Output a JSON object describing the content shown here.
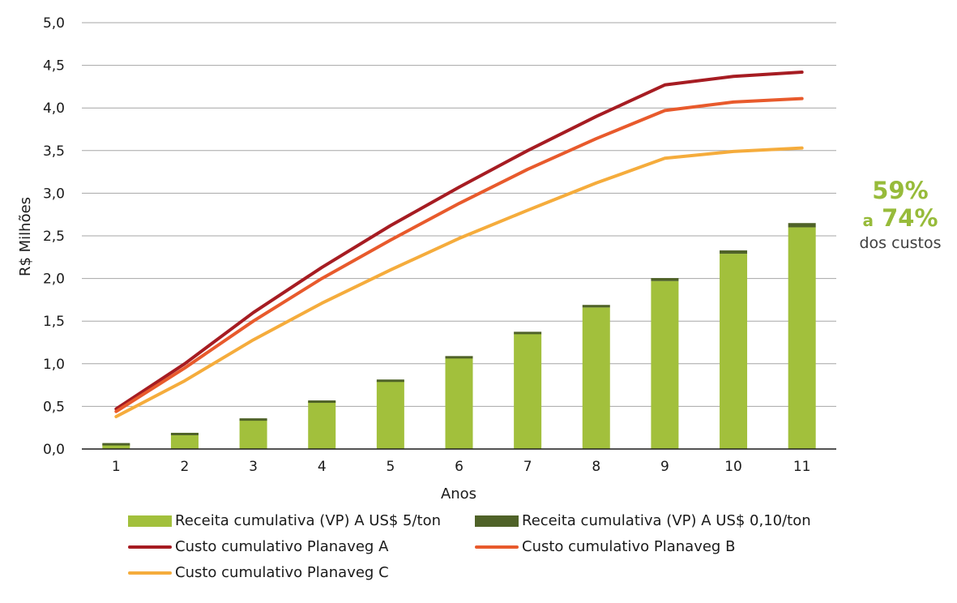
{
  "chart_data": {
    "type": "bar",
    "xlabel": "Anos",
    "ylabel": "R$ Milhões",
    "categories": [
      "1",
      "2",
      "3",
      "4",
      "5",
      "6",
      "7",
      "8",
      "9",
      "10",
      "11"
    ],
    "ylim": [
      0,
      5
    ],
    "yticks": [
      "0,0",
      "0,5",
      "1,0",
      "1,5",
      "2,0",
      "2,5",
      "3,0",
      "3,5",
      "4,0",
      "4,5",
      "5,0"
    ],
    "grid": true,
    "legend_position": "bottom",
    "bar_series": [
      {
        "name": "Receita cumulativa (VP) A US$ 5/ton",
        "color": "#a2c03c",
        "values": [
          0.06,
          0.18,
          0.35,
          0.56,
          0.8,
          1.07,
          1.35,
          1.66,
          1.97,
          2.29,
          2.6
        ]
      },
      {
        "name": "Receita cumulativa (VP) A US$ 0,10/ton",
        "color": "#4f6228",
        "values": [
          0.01,
          0.01,
          0.01,
          0.01,
          0.015,
          0.02,
          0.025,
          0.03,
          0.035,
          0.04,
          0.05
        ]
      }
    ],
    "line_series": [
      {
        "name": "Custo cumulativo Planaveg A",
        "color": "#a61c22",
        "values": [
          0.47,
          1.0,
          1.6,
          2.13,
          2.62,
          3.07,
          3.5,
          3.9,
          4.27,
          4.37,
          4.42
        ]
      },
      {
        "name": "Custo cumulativo Planaveg B",
        "color": "#e85a2c",
        "values": [
          0.44,
          0.95,
          1.5,
          2.0,
          2.45,
          2.88,
          3.28,
          3.64,
          3.97,
          4.07,
          4.11
        ]
      },
      {
        "name": "Custo cumulativo Planaveg C",
        "color": "#f5ac3c",
        "values": [
          0.38,
          0.8,
          1.28,
          1.71,
          2.1,
          2.47,
          2.8,
          3.12,
          3.41,
          3.49,
          3.53
        ]
      }
    ],
    "annotation": {
      "line1": "59%",
      "prefix": "a",
      "line2": "74%",
      "line3": "dos custos"
    }
  }
}
